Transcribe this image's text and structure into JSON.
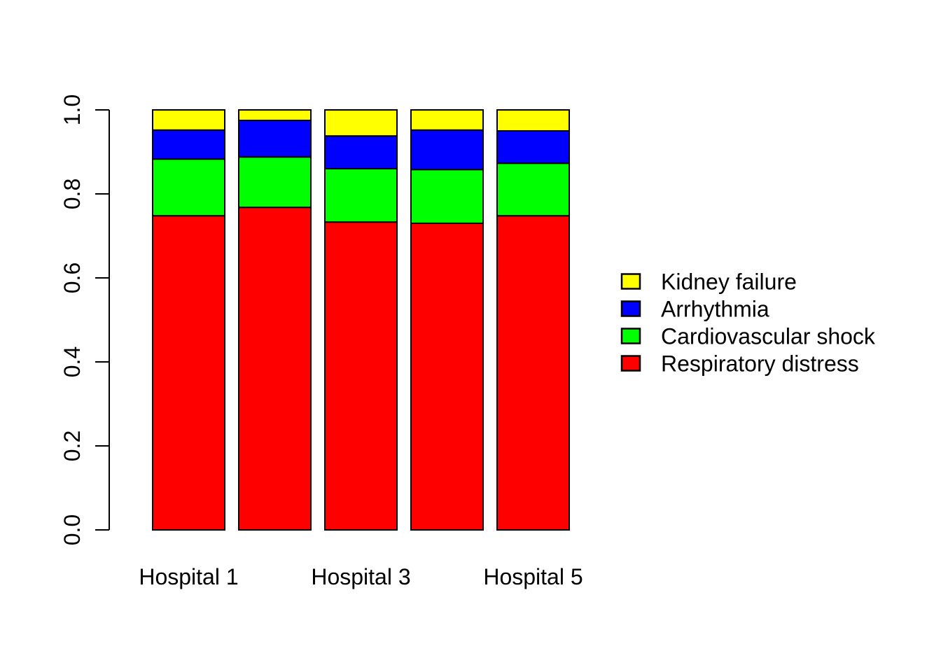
{
  "chart_data": {
    "type": "bar",
    "stacked": true,
    "title": "",
    "xlabel": "",
    "ylabel": "",
    "x_tick_labels": [
      "Hospital 1",
      "",
      "Hospital 3",
      "",
      "Hospital 5"
    ],
    "ylim": [
      0,
      1
    ],
    "y_ticks": [
      0.0,
      0.2,
      0.4,
      0.6,
      0.8,
      1.0
    ],
    "y_tick_labels": [
      "0.0",
      "0.2",
      "0.4",
      "0.6",
      "0.8",
      "1.0"
    ],
    "grid": false,
    "background_color": "#FFFFFF",
    "bar_border_color": "#000000",
    "axis_color": "#000000",
    "series_stack_order": "bottom_to_top",
    "series": [
      {
        "name": "Respiratory distress",
        "color": "#FF0000",
        "values": [
          0.748,
          0.768,
          0.733,
          0.73,
          0.748
        ]
      },
      {
        "name": "Cardiovascular shock",
        "color": "#00FF00",
        "values": [
          0.135,
          0.12,
          0.127,
          0.128,
          0.125
        ]
      },
      {
        "name": "Arrhythmia",
        "color": "#0000FF",
        "values": [
          0.069,
          0.087,
          0.078,
          0.094,
          0.077
        ]
      },
      {
        "name": "Kidney failure",
        "color": "#FFFF00",
        "values": [
          0.048,
          0.025,
          0.062,
          0.048,
          0.05
        ]
      }
    ],
    "legend": {
      "position": "right-center",
      "frame": false,
      "entries": [
        {
          "label": "Kidney failure",
          "color": "#FFFF00"
        },
        {
          "label": "Arrhythmia",
          "color": "#0000FF"
        },
        {
          "label": "Cardiovascular shock",
          "color": "#00FF00"
        },
        {
          "label": "Respiratory distress",
          "color": "#FF0000"
        }
      ]
    }
  }
}
